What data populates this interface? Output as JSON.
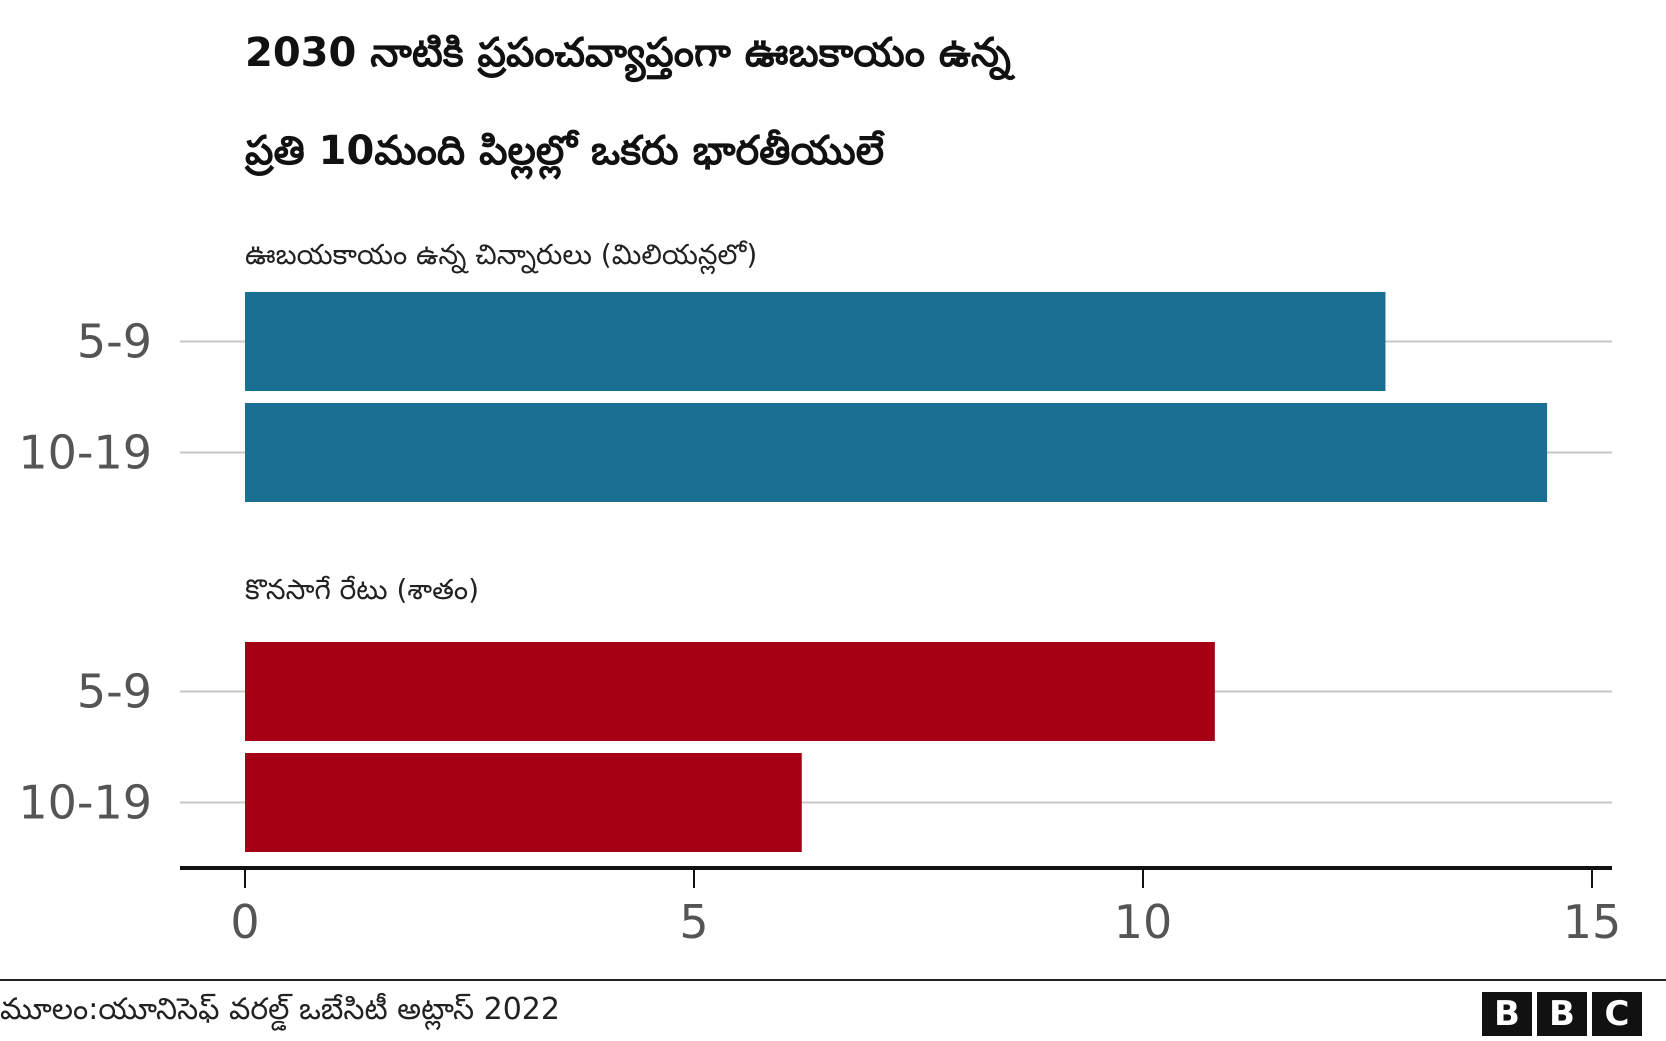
{
  "title_line_1": "2030 నాటికి ప్రపంచవ్యాప్తంగా ఊబకాయం ఉన్న",
  "title_line_2": "ప్రతి 10మంది పిల్లల్లో ఒకరు భారతీయులే",
  "source": "మూలం:యూనిసెఫ్ వరల్డ్ ఒబేసిటీ అట్లాస్ 2022",
  "brand": [
    "B",
    "B",
    "C"
  ],
  "chart_data": {
    "type": "bar",
    "orientation": "horizontal",
    "xlim": [
      0,
      15
    ],
    "xticks": [
      0,
      5,
      10,
      15
    ],
    "grid": true,
    "panels": [
      {
        "subtitle": "ఊబయకాయం ఉన్న చిన్నారులు (మిలియన్లలో)",
        "color": "#1a6f93",
        "categories": [
          "5-9",
          "10-19"
        ],
        "values": [
          12.7,
          14.5
        ]
      },
      {
        "subtitle": "కొనసాగే రేటు (శాతం)",
        "color": "#a50013",
        "categories": [
          "5-9",
          "10-19"
        ],
        "values": [
          10.8,
          6.2
        ]
      }
    ]
  }
}
